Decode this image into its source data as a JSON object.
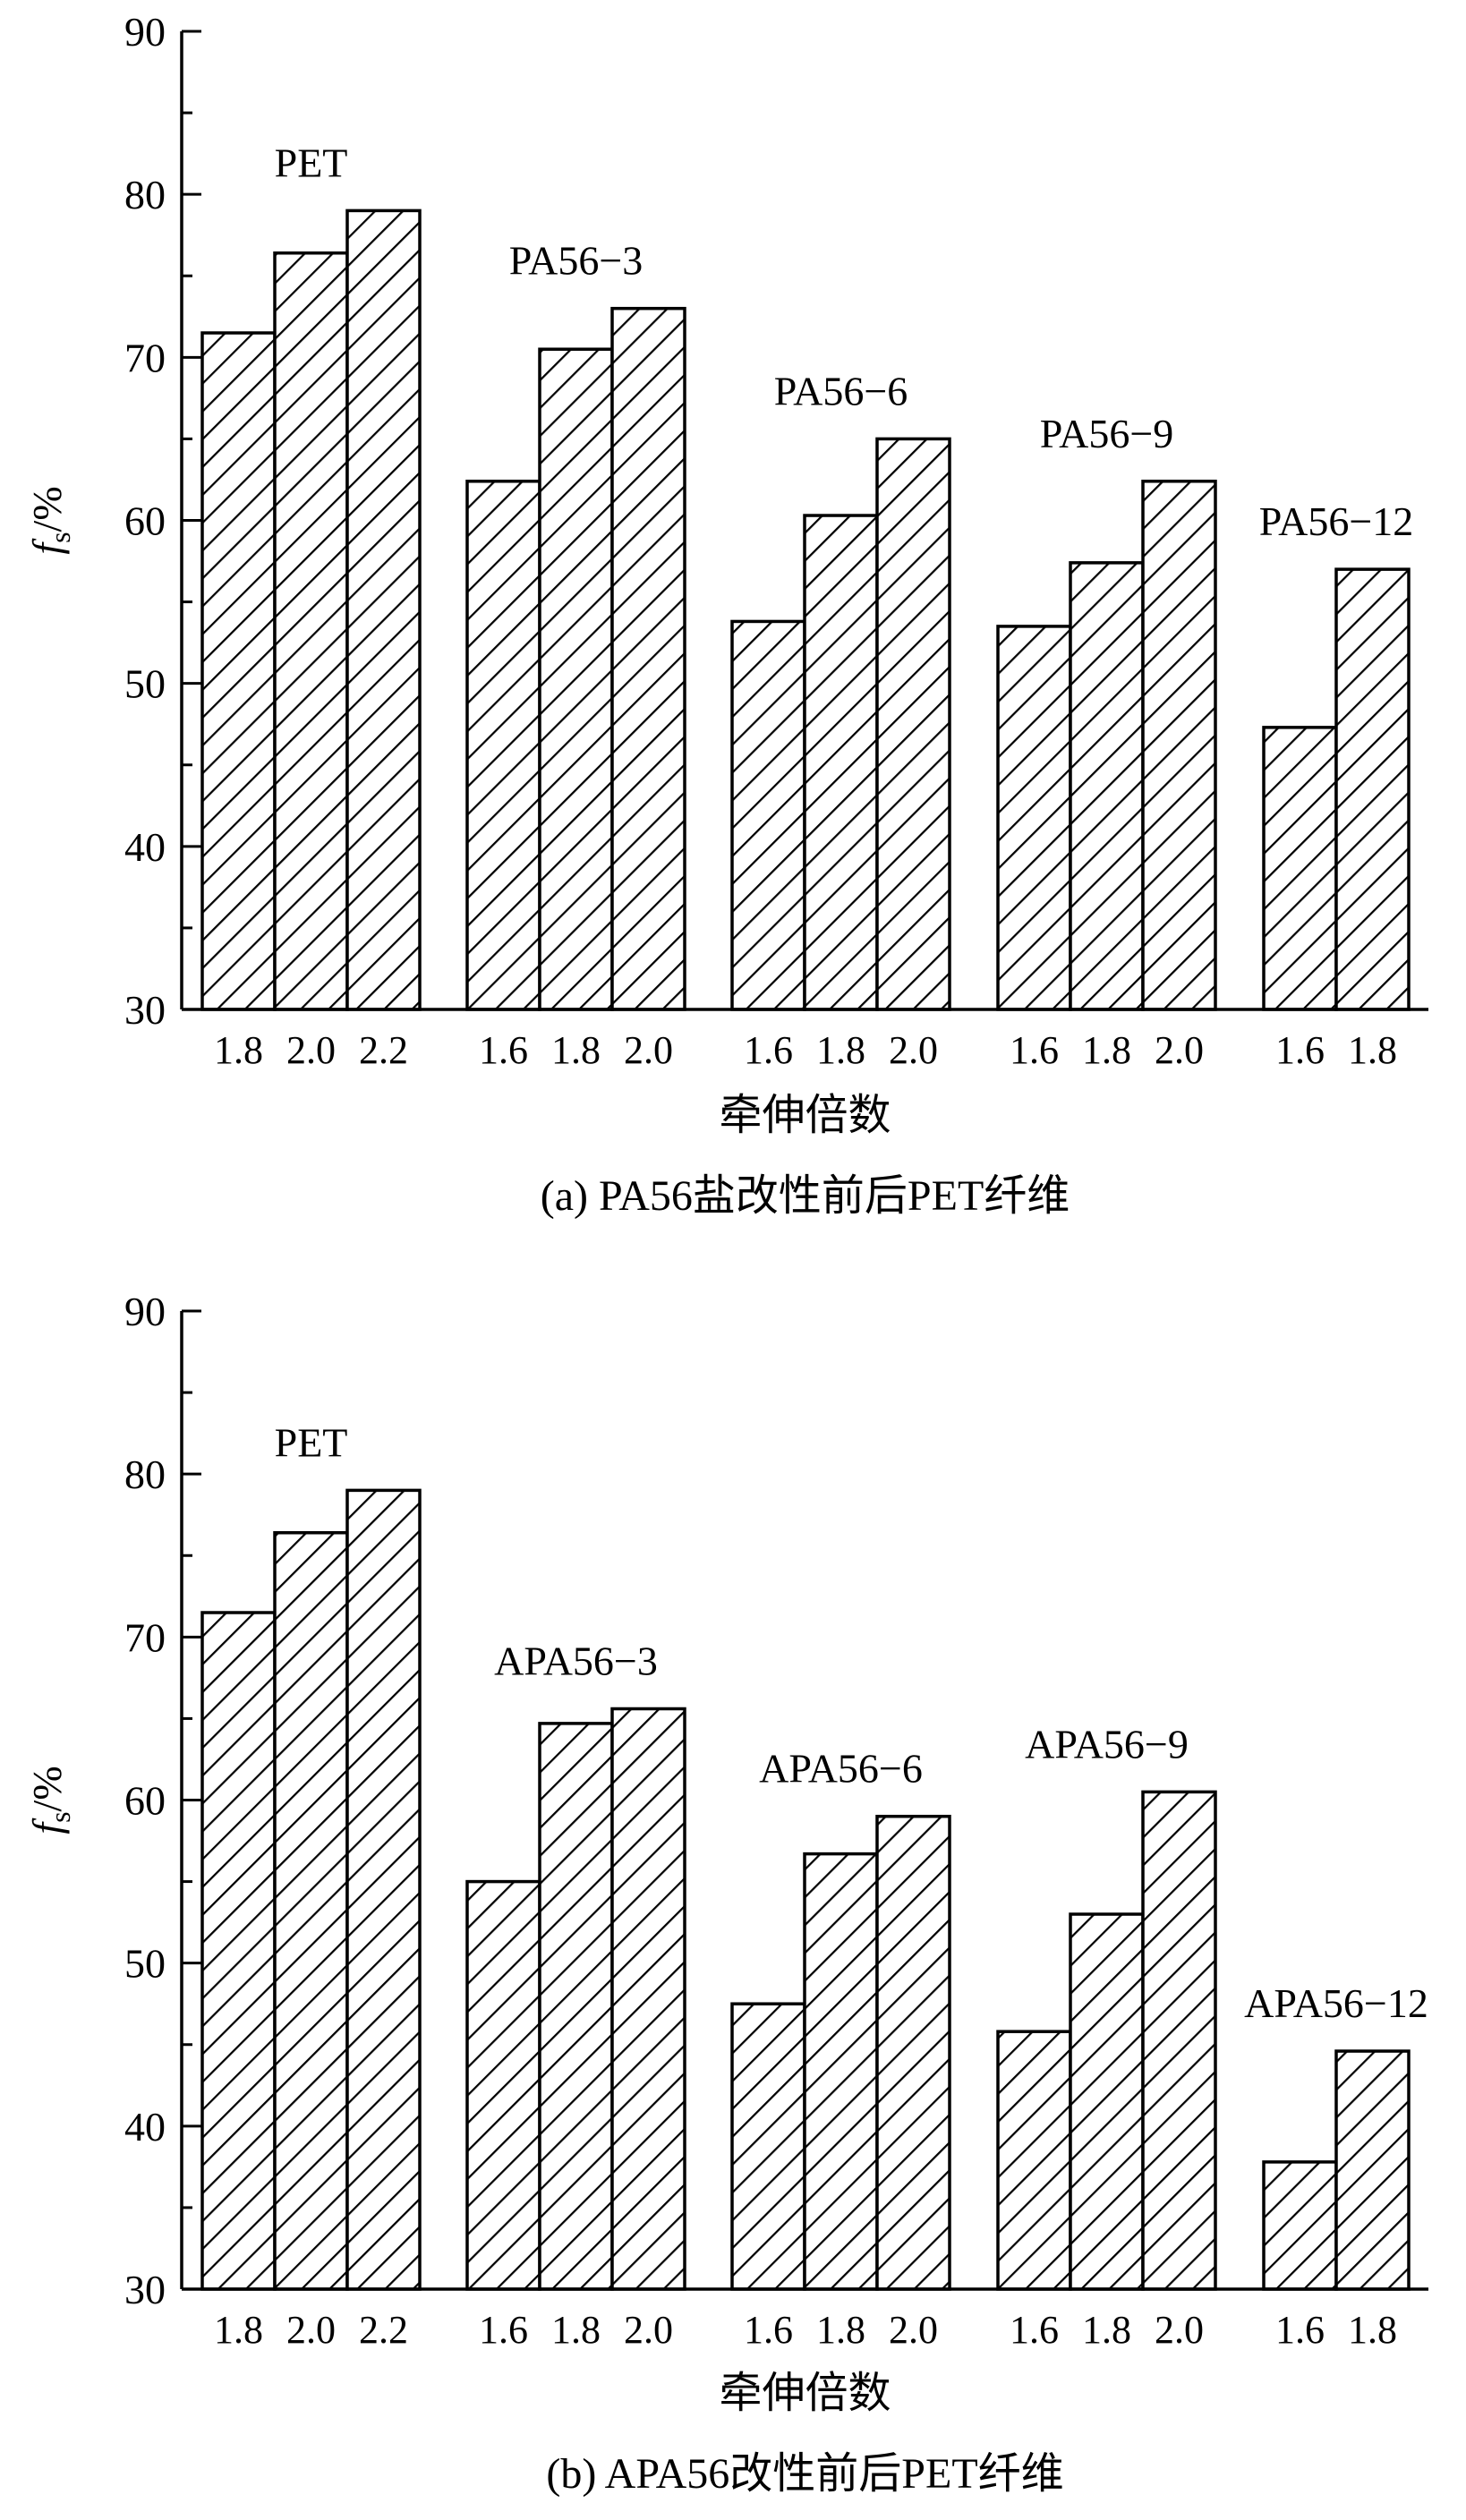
{
  "chart_data": [
    {
      "type": "bar",
      "ylabel": "f_s/%",
      "xlabel": "牵伸倍数",
      "caption": "(a) PA56盐改性前后PET纤维",
      "ylim": [
        30,
        90
      ],
      "yticks": [
        "30",
        "40",
        "50",
        "60",
        "70",
        "80",
        "90"
      ],
      "grid": false,
      "groups": [
        {
          "name": "PET",
          "categories": [
            "1.8",
            "2.0",
            "2.2"
          ],
          "values": [
            71.5,
            76.4,
            79.0
          ]
        },
        {
          "name": "PA56−3",
          "categories": [
            "1.6",
            "1.8",
            "2.0"
          ],
          "values": [
            62.4,
            70.5,
            73.0
          ]
        },
        {
          "name": "PA56−6",
          "categories": [
            "1.6",
            "1.8",
            "2.0"
          ],
          "values": [
            53.8,
            60.3,
            65.0
          ]
        },
        {
          "name": "PA56−9",
          "categories": [
            "1.6",
            "1.8",
            "2.0"
          ],
          "values": [
            53.5,
            57.4,
            62.4
          ]
        },
        {
          "name": "PA56−12",
          "categories": [
            "1.6",
            "1.8"
          ],
          "values": [
            47.3,
            57.0
          ]
        }
      ]
    },
    {
      "type": "bar",
      "ylabel": "f_s/%",
      "xlabel": "牵伸倍数",
      "caption": "(b) APA56改性前后PET纤维",
      "ylim": [
        30,
        90
      ],
      "yticks": [
        "30",
        "40",
        "50",
        "60",
        "70",
        "80",
        "90"
      ],
      "grid": false,
      "groups": [
        {
          "name": "PET",
          "categories": [
            "1.8",
            "2.0",
            "2.2"
          ],
          "values": [
            71.5,
            76.4,
            79.0
          ]
        },
        {
          "name": "APA56−3",
          "categories": [
            "1.6",
            "1.8",
            "2.0"
          ],
          "values": [
            55.0,
            64.7,
            65.6
          ]
        },
        {
          "name": "APA56−6",
          "categories": [
            "1.6",
            "1.8",
            "2.0"
          ],
          "values": [
            47.5,
            56.7,
            59.0
          ]
        },
        {
          "name": "APA56−9",
          "categories": [
            "1.6",
            "1.8",
            "2.0"
          ],
          "values": [
            45.8,
            53.0,
            60.5
          ]
        },
        {
          "name": "APA56−12",
          "categories": [
            "1.6",
            "1.8"
          ],
          "values": [
            37.8,
            44.6
          ]
        }
      ]
    }
  ]
}
